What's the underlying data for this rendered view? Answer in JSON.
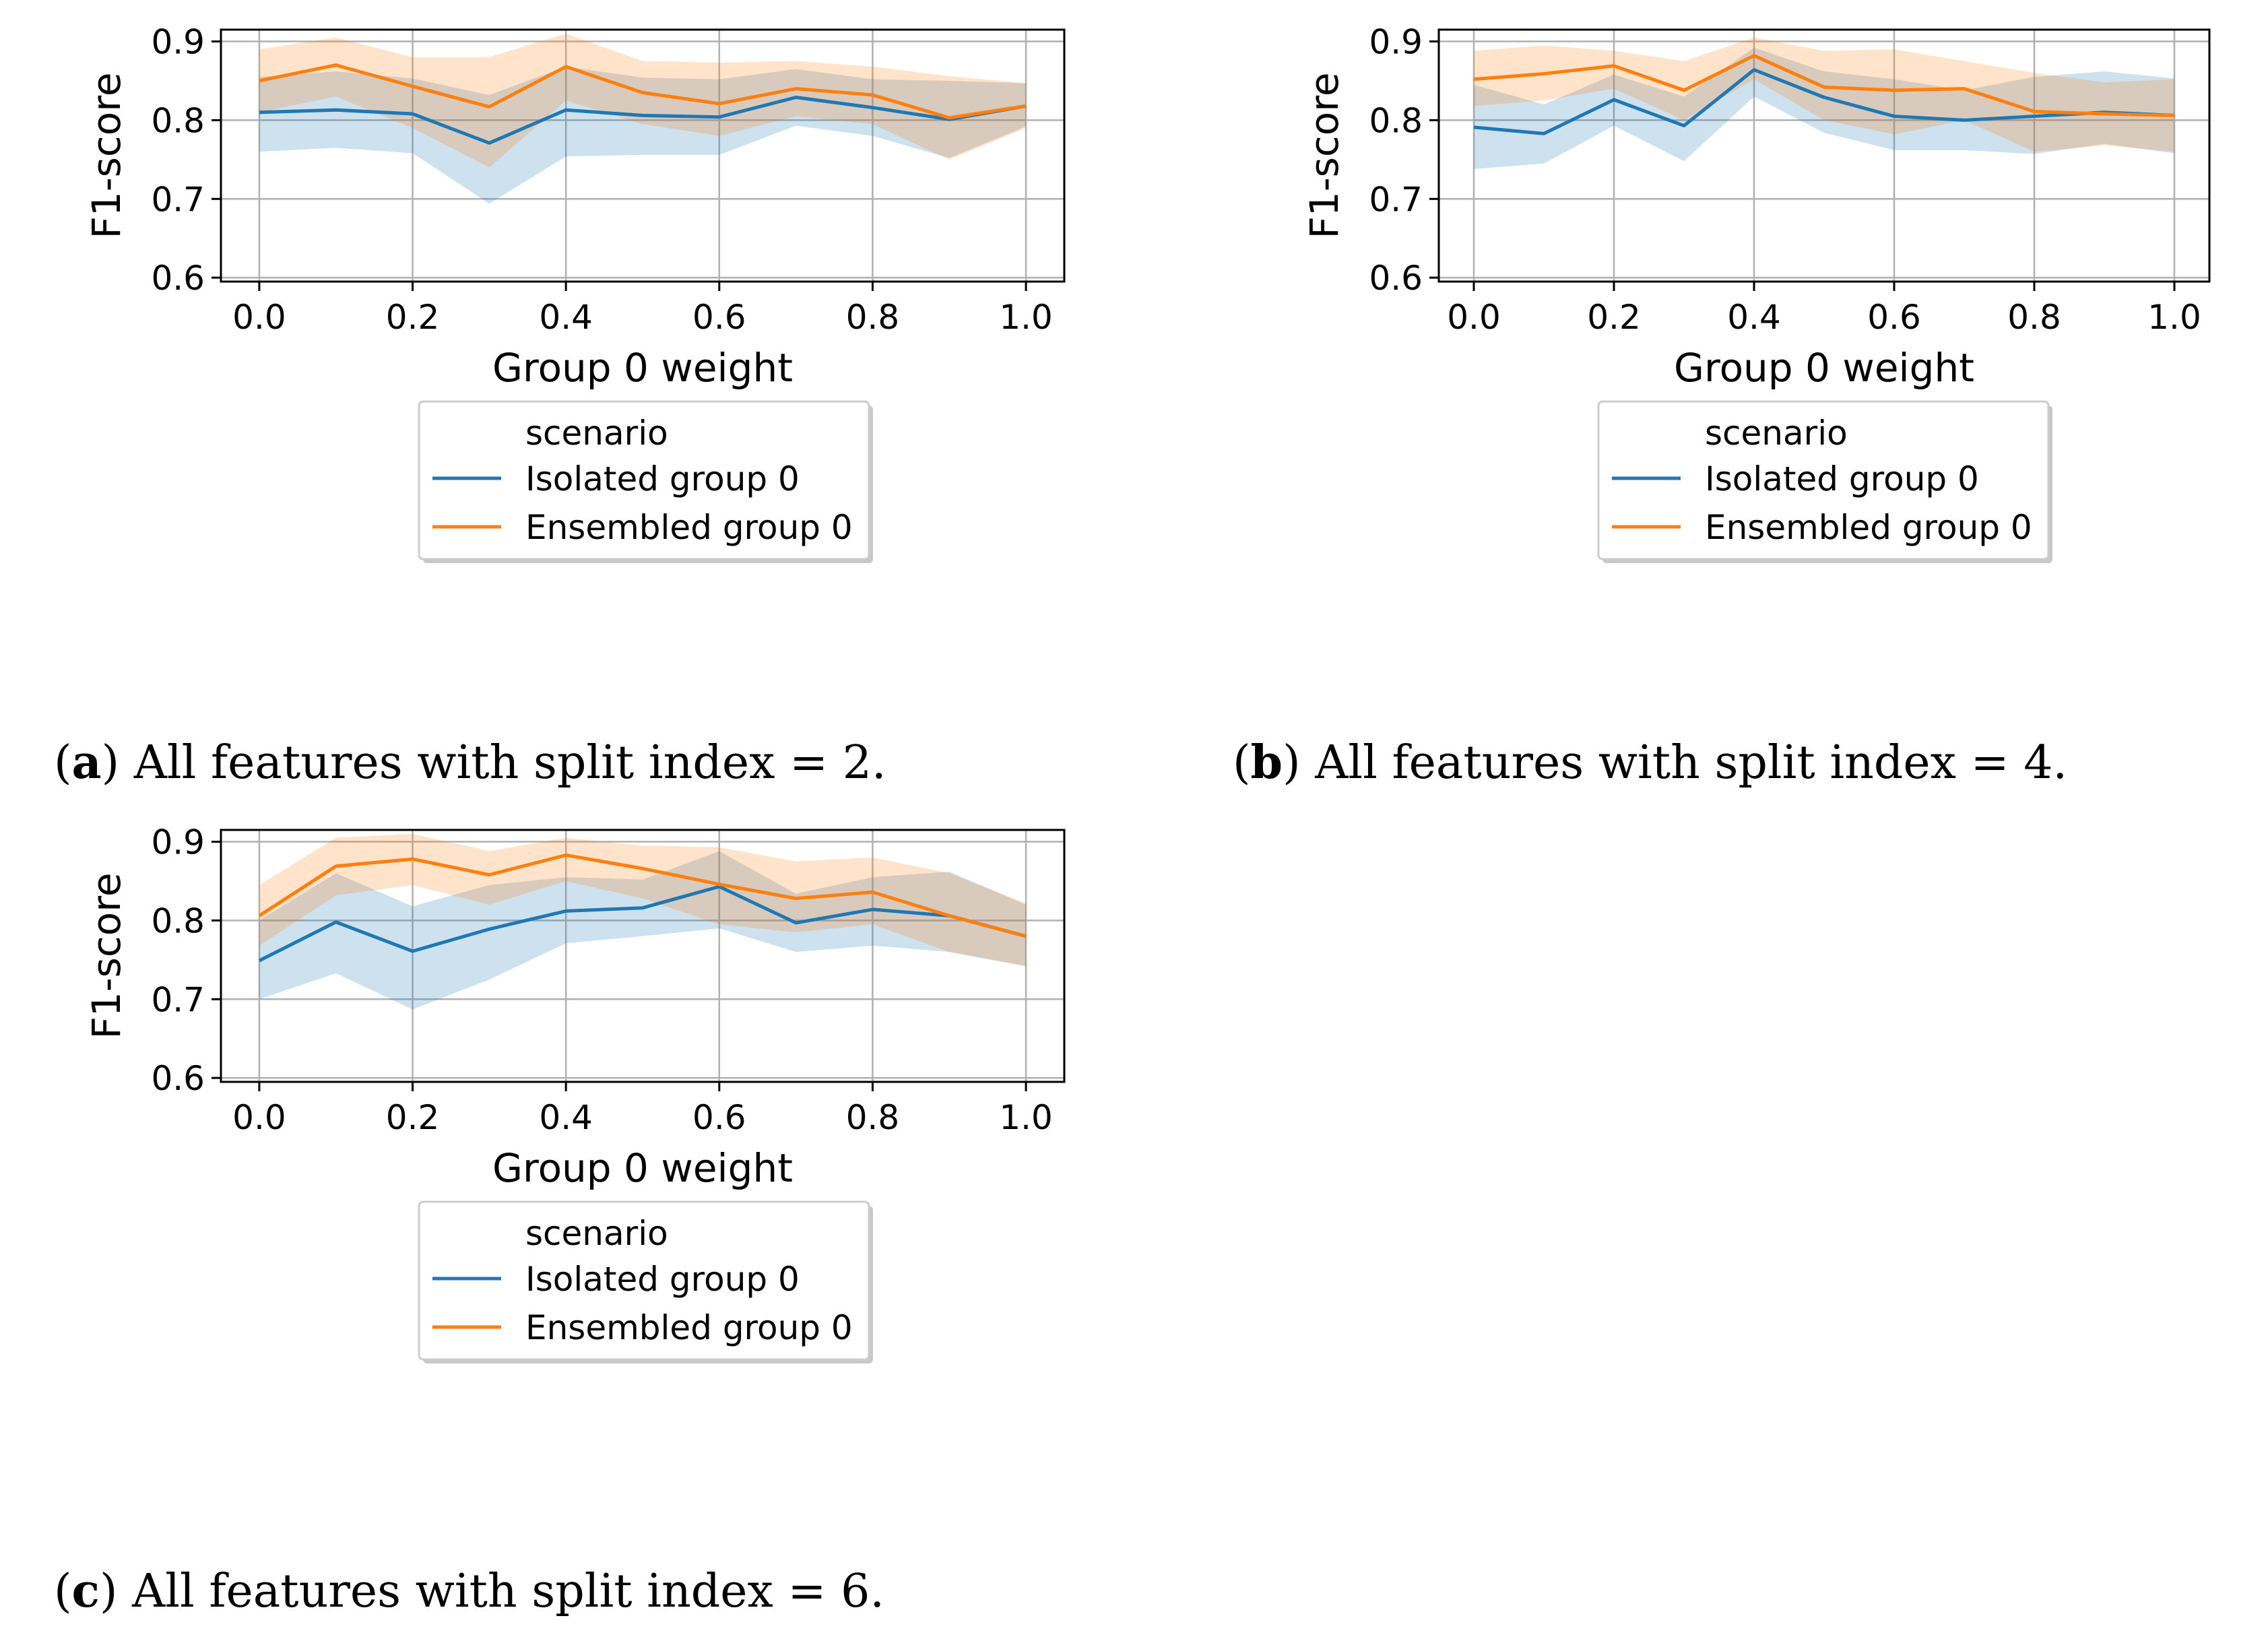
{
  "chart_data": [
    {
      "type": "line",
      "caption": {
        "label": "a",
        "text": "All features with split index = 2."
      },
      "xlabel": "Group 0 weight",
      "ylabel": "F1-score",
      "xlim": [
        -0.05,
        1.05
      ],
      "ylim": [
        0.595,
        0.915
      ],
      "xticks": [
        "0.0",
        "0.2",
        "0.4",
        "0.6",
        "0.8",
        "1.0"
      ],
      "yticks": [
        "0.6",
        "0.7",
        "0.8",
        "0.9"
      ],
      "grid": true,
      "legend": {
        "title": "scenario",
        "placement": "below",
        "entries": [
          "Isolated group 0",
          "Ensembled group 0"
        ]
      },
      "x": [
        0.0,
        0.1,
        0.2,
        0.3,
        0.4,
        0.5,
        0.6,
        0.7,
        0.8,
        0.9,
        1.0
      ],
      "series": [
        {
          "name": "Isolated group 0",
          "color": "#1f77b4",
          "values": [
            0.81,
            0.813,
            0.808,
            0.771,
            0.813,
            0.806,
            0.804,
            0.829,
            0.816,
            0.801,
            0.818
          ],
          "lower": [
            0.76,
            0.765,
            0.758,
            0.694,
            0.754,
            0.756,
            0.756,
            0.793,
            0.78,
            0.752,
            0.792
          ],
          "upper": [
            0.855,
            0.862,
            0.853,
            0.832,
            0.868,
            0.854,
            0.852,
            0.865,
            0.852,
            0.85,
            0.847
          ]
        },
        {
          "name": "Ensembled group 0",
          "color": "#ff7f0e",
          "values": [
            0.85,
            0.87,
            0.843,
            0.817,
            0.868,
            0.835,
            0.821,
            0.84,
            0.832,
            0.803,
            0.818
          ],
          "lower": [
            0.81,
            0.83,
            0.79,
            0.74,
            0.825,
            0.795,
            0.78,
            0.805,
            0.795,
            0.75,
            0.79
          ],
          "upper": [
            0.89,
            0.905,
            0.88,
            0.88,
            0.91,
            0.875,
            0.873,
            0.875,
            0.868,
            0.856,
            0.847
          ]
        }
      ]
    },
    {
      "type": "line",
      "caption": {
        "label": "b",
        "text": "All features with split index = 4."
      },
      "xlabel": "Group 0 weight",
      "ylabel": "F1-score",
      "xlim": [
        -0.05,
        1.05
      ],
      "ylim": [
        0.595,
        0.915
      ],
      "xticks": [
        "0.0",
        "0.2",
        "0.4",
        "0.6",
        "0.8",
        "1.0"
      ],
      "yticks": [
        "0.6",
        "0.7",
        "0.8",
        "0.9"
      ],
      "grid": true,
      "legend": {
        "title": "scenario",
        "placement": "below",
        "entries": [
          "Isolated group 0",
          "Ensembled group 0"
        ]
      },
      "x": [
        0.0,
        0.1,
        0.2,
        0.3,
        0.4,
        0.5,
        0.6,
        0.7,
        0.8,
        0.9,
        1.0
      ],
      "series": [
        {
          "name": "Isolated group 0",
          "color": "#1f77b4",
          "values": [
            0.791,
            0.783,
            0.826,
            0.793,
            0.864,
            0.829,
            0.805,
            0.8,
            0.805,
            0.81,
            0.806
          ],
          "lower": [
            0.738,
            0.745,
            0.793,
            0.748,
            0.83,
            0.784,
            0.762,
            0.762,
            0.757,
            0.77,
            0.758
          ],
          "upper": [
            0.845,
            0.82,
            0.858,
            0.83,
            0.892,
            0.862,
            0.852,
            0.838,
            0.855,
            0.862,
            0.853
          ]
        },
        {
          "name": "Ensembled group 0",
          "color": "#ff7f0e",
          "values": [
            0.852,
            0.859,
            0.869,
            0.838,
            0.882,
            0.842,
            0.838,
            0.84,
            0.811,
            0.808,
            0.806
          ],
          "lower": [
            0.818,
            0.825,
            0.84,
            0.8,
            0.852,
            0.8,
            0.782,
            0.8,
            0.76,
            0.768,
            0.76
          ],
          "upper": [
            0.888,
            0.895,
            0.888,
            0.875,
            0.905,
            0.888,
            0.89,
            0.875,
            0.86,
            0.848,
            0.852
          ]
        }
      ]
    },
    {
      "type": "line",
      "caption": {
        "label": "c",
        "text": "All features with split index = 6."
      },
      "xlabel": "Group 0 weight",
      "ylabel": "F1-score",
      "xlim": [
        -0.05,
        1.05
      ],
      "ylim": [
        0.595,
        0.915
      ],
      "xticks": [
        "0.0",
        "0.2",
        "0.4",
        "0.6",
        "0.8",
        "1.0"
      ],
      "yticks": [
        "0.6",
        "0.7",
        "0.8",
        "0.9"
      ],
      "grid": true,
      "legend": {
        "title": "scenario",
        "placement": "below",
        "entries": [
          "Isolated group 0",
          "Ensembled group 0"
        ]
      },
      "x": [
        0.0,
        0.1,
        0.2,
        0.3,
        0.4,
        0.5,
        0.6,
        0.7,
        0.8,
        0.9,
        1.0
      ],
      "series": [
        {
          "name": "Isolated group 0",
          "color": "#1f77b4",
          "values": [
            0.749,
            0.798,
            0.761,
            0.789,
            0.812,
            0.816,
            0.843,
            0.797,
            0.814,
            0.806,
            0.78
          ],
          "lower": [
            0.7,
            0.733,
            0.687,
            0.725,
            0.771,
            0.78,
            0.79,
            0.76,
            0.768,
            0.76,
            0.742
          ],
          "upper": [
            0.8,
            0.86,
            0.818,
            0.845,
            0.855,
            0.852,
            0.888,
            0.834,
            0.855,
            0.862,
            0.82
          ]
        },
        {
          "name": "Ensembled group 0",
          "color": "#ff7f0e",
          "values": [
            0.806,
            0.869,
            0.878,
            0.858,
            0.883,
            0.866,
            0.846,
            0.828,
            0.836,
            0.806,
            0.78
          ],
          "lower": [
            0.768,
            0.832,
            0.845,
            0.82,
            0.85,
            0.828,
            0.795,
            0.785,
            0.795,
            0.76,
            0.742
          ],
          "upper": [
            0.845,
            0.905,
            0.91,
            0.888,
            0.905,
            0.895,
            0.893,
            0.875,
            0.88,
            0.86,
            0.822
          ]
        }
      ]
    }
  ]
}
